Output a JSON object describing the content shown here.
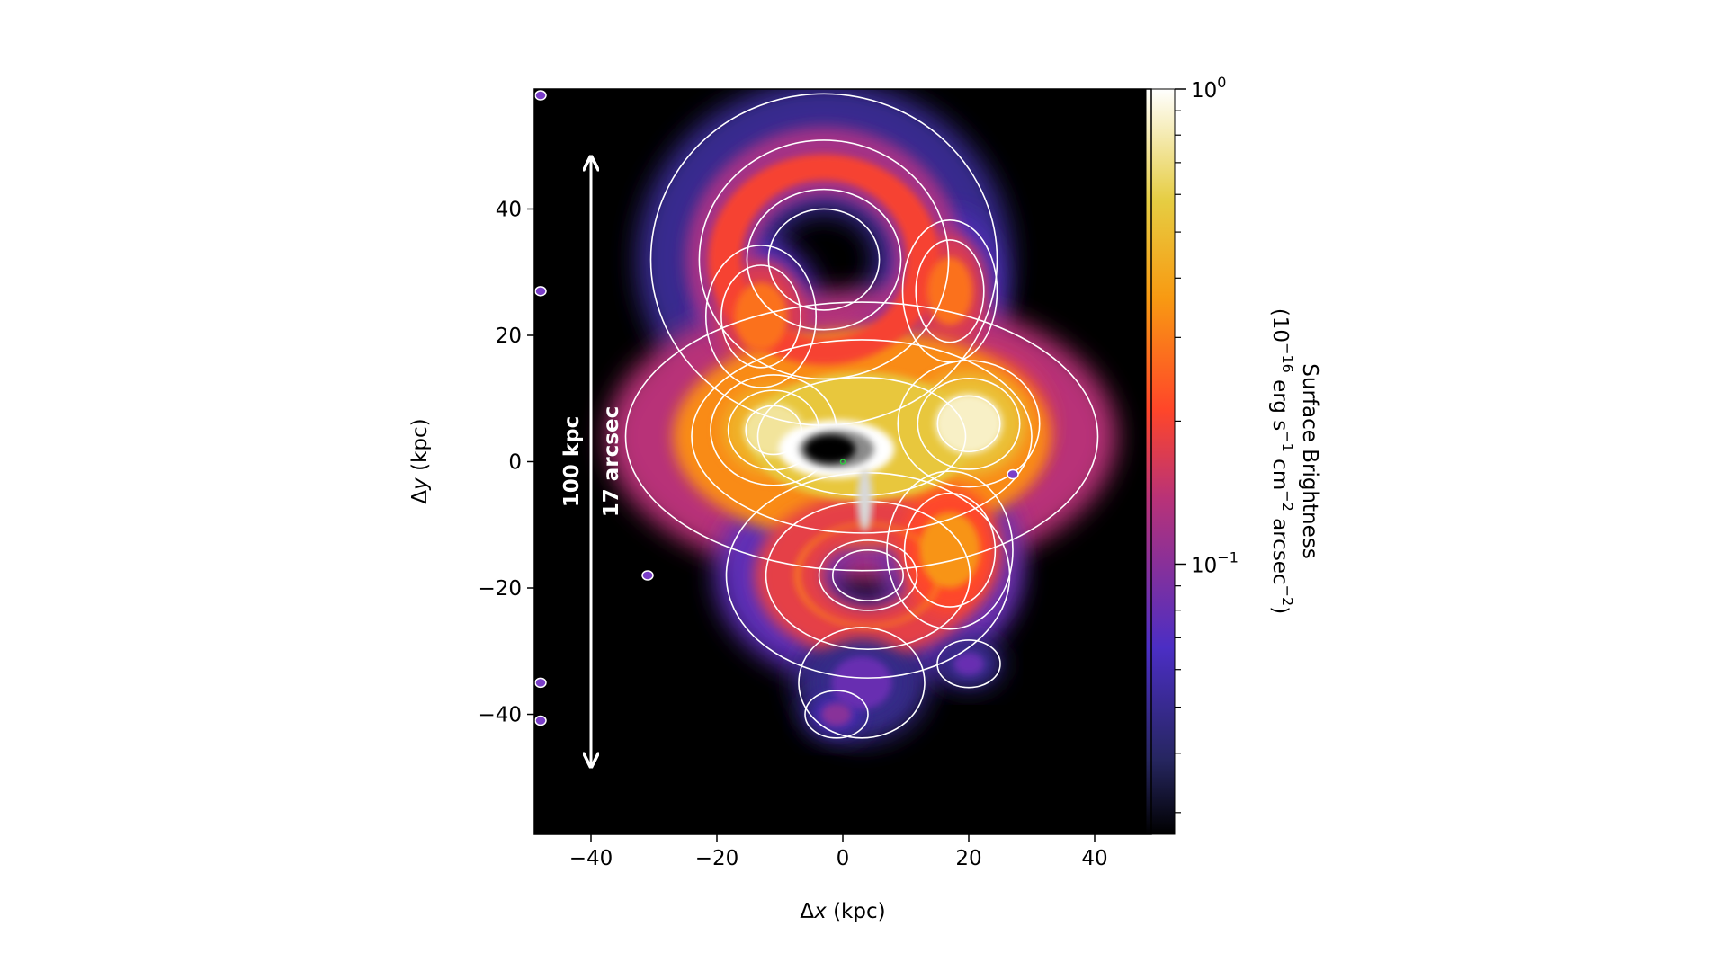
{
  "chart_data": {
    "type": "heatmap",
    "title": "",
    "xlabel": "Δx (kpc)",
    "ylabel": "Δy (kpc)",
    "xlim": [
      -49,
      49
    ],
    "ylim": [
      -59,
      59
    ],
    "x_ticks": [
      -40,
      -20,
      0,
      20,
      40
    ],
    "y_ticks": [
      -40,
      -20,
      0,
      20,
      40
    ],
    "x_tick_labels": [
      "−40",
      "−20",
      "0",
      "20",
      "40"
    ],
    "y_tick_labels": [
      "−40",
      "−20",
      "0",
      "20",
      "40"
    ],
    "grid": false,
    "colormap": "CMRmap",
    "colorbar": {
      "scale": "log",
      "range": [
        0.027,
        1.0
      ],
      "major_ticks": [
        {
          "value": 1.0,
          "base": "10",
          "exp": "0"
        },
        {
          "value": 0.1,
          "base": "10",
          "exp": "−1"
        }
      ],
      "minor_ticks": [
        0.9,
        0.8,
        0.7,
        0.6,
        0.5,
        0.4,
        0.3,
        0.2,
        0.09,
        0.08,
        0.07,
        0.06,
        0.05,
        0.04,
        0.03
      ],
      "label_line1": "Surface Brightness",
      "label_line2_parts": [
        "(10",
        "−16",
        " erg s",
        "−1",
        " cm",
        "−2",
        " arcsec",
        "−2",
        ")"
      ]
    },
    "scale_bar": {
      "x": -40,
      "y_range": [
        -48,
        48
      ],
      "label_kpc": "100 kpc",
      "label_arcsec": "17 arcsec"
    },
    "emission_features": [
      {
        "name": "northern-ring",
        "shape": "ring",
        "cx": -3,
        "cy": 32,
        "rx": 22,
        "ry": 21,
        "inner_rx": 11,
        "inner_ry": 10,
        "brightness": 0.2
      },
      {
        "name": "northern-ring-east-arm",
        "shape": "blob",
        "cx": 17,
        "cy": 27,
        "rx": 6,
        "ry": 9,
        "brightness": 0.28
      },
      {
        "name": "northern-ring-west-arm",
        "shape": "blob",
        "cx": -13,
        "cy": 23,
        "rx": 7,
        "ry": 9,
        "brightness": 0.28
      },
      {
        "name": "central-bar",
        "shape": "blob",
        "cx": 3,
        "cy": 4,
        "rx": 30,
        "ry": 17,
        "brightness": 0.55
      },
      {
        "name": "central-bar-east-peak",
        "shape": "blob",
        "cx": 20,
        "cy": 6,
        "rx": 9,
        "ry": 8,
        "brightness": 0.85
      },
      {
        "name": "central-bar-west-peak",
        "shape": "blob",
        "cx": -11,
        "cy": 5,
        "rx": 8,
        "ry": 7,
        "brightness": 0.75
      },
      {
        "name": "southern-loop",
        "shape": "ring",
        "cx": 4,
        "cy": -18,
        "rx": 18,
        "ry": 13,
        "inner_rx": 7,
        "inner_ry": 5,
        "brightness": 0.3
      },
      {
        "name": "southern-east-lobe",
        "shape": "blob",
        "cx": 17,
        "cy": -14,
        "rx": 8,
        "ry": 10,
        "brightness": 0.35
      },
      {
        "name": "southern-tail",
        "shape": "blob",
        "cx": 3,
        "cy": -35,
        "rx": 8,
        "ry": 7,
        "brightness": 0.08
      },
      {
        "name": "southern-clump",
        "shape": "blob",
        "cx": -1,
        "cy": -40,
        "rx": 4,
        "ry": 3,
        "brightness": 0.1
      },
      {
        "name": "eastern-clump",
        "shape": "blob",
        "cx": 20,
        "cy": -32,
        "rx": 4,
        "ry": 3,
        "brightness": 0.08
      }
    ],
    "contour_levels": [
      0.06,
      0.15,
      0.4
    ],
    "central_galaxy": {
      "x": -1,
      "y": 2,
      "rx": 8,
      "ry": 4,
      "color": "greyscale"
    },
    "nucleus_marker": {
      "x": 0,
      "y": 0,
      "color": "#2ecc40"
    },
    "point_sources": [
      {
        "x": 27,
        "y": -2
      },
      {
        "x": -48,
        "y": 58
      },
      {
        "x": -48,
        "y": 27
      },
      {
        "x": -31,
        "y": -18
      },
      {
        "x": -48,
        "y": -35
      },
      {
        "x": -48,
        "y": -41
      }
    ]
  }
}
